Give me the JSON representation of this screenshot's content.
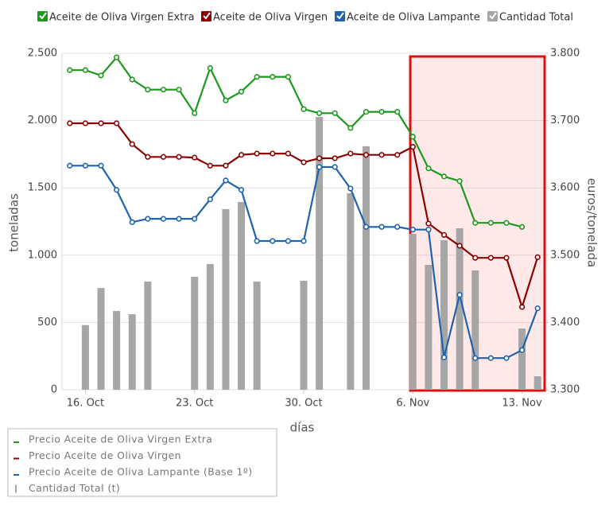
{
  "chart_data": {
    "type": "combo",
    "y_label": "toneladas",
    "y2_label": "euros/tonelada",
    "x_label": "días",
    "categories": [
      null,
      "16. Oct",
      null,
      null,
      null,
      null,
      null,
      null,
      "23. Oct",
      null,
      null,
      null,
      null,
      null,
      null,
      "30. Oct",
      null,
      null,
      null,
      null,
      null,
      null,
      "6. Nov",
      null,
      null,
      null,
      null,
      null,
      null,
      "13. Nov",
      null
    ],
    "ylim": [
      0,
      2500
    ],
    "yticks": [
      {
        "value": 0,
        "label": "0"
      },
      {
        "value": 500,
        "label": "500"
      },
      {
        "value": 1000,
        "label": "1.000"
      },
      {
        "value": 1500,
        "label": "1.500"
      },
      {
        "value": 2000,
        "label": "2.000"
      },
      {
        "value": 2500,
        "label": "2.500"
      }
    ],
    "y2lim": [
      3300,
      3800
    ],
    "y2ticks": [
      {
        "value": 3300,
        "label": "3.300"
      },
      {
        "value": 3400,
        "label": "3.400"
      },
      {
        "value": 3500,
        "label": "3.500"
      },
      {
        "value": 3600,
        "label": "3.600"
      },
      {
        "value": 3700,
        "label": "3.700"
      },
      {
        "value": 3800,
        "label": "3.800"
      }
    ],
    "grid": true,
    "series": [
      {
        "name": "Aceite de Oliva Virgen Extra",
        "description": "Precio Aceite de Oliva Virgen Extra",
        "type": "line",
        "axis": "y2",
        "color": "#1a9a1a",
        "values": [
          3775,
          3775,
          3767,
          3794,
          3761,
          3746,
          3746,
          3746,
          3711,
          3778,
          3730,
          3743,
          3765,
          3765,
          3765,
          3717,
          3711,
          3711,
          3689,
          3713,
          3713,
          3713,
          3676,
          3629,
          3617,
          3610,
          3548,
          3548,
          3548,
          3542,
          null
        ]
      },
      {
        "name": "Aceite de Oliva Virgen",
        "description": "Precio Aceite de Oliva Virgen",
        "type": "line",
        "axis": "y2",
        "color": "#8b0000",
        "values": [
          3696,
          3696,
          3696,
          3696,
          3665,
          3646,
          3646,
          3646,
          3645,
          3633,
          3633,
          3649,
          3651,
          3651,
          3651,
          3638,
          3644,
          3644,
          3651,
          3649,
          3649,
          3649,
          3661,
          3547,
          3530,
          3514,
          3496,
          3496,
          3496,
          3423,
          3497
        ]
      },
      {
        "name": "Aceite de Oliva Lampante",
        "description": "Precio Aceite de Oliva Lampante (Base 1º)",
        "type": "line",
        "axis": "y2",
        "color": "#1e63b0",
        "values": [
          3633,
          3633,
          3633,
          3597,
          3549,
          3554,
          3554,
          3554,
          3554,
          3583,
          3611,
          3597,
          3521,
          3521,
          3521,
          3521,
          3631,
          3631,
          3599,
          3542,
          3542,
          3542,
          3538,
          3538,
          3348,
          3441,
          3347,
          3347,
          3347,
          3359,
          3421
        ]
      },
      {
        "name": "Cantidad Total",
        "description": "Cantidad Total (t)",
        "type": "bar",
        "color": "#a6a6a6",
        "values": [
          null,
          480,
          756,
          585,
          561,
          804,
          null,
          null,
          839,
          934,
          1342,
          1395,
          804,
          null,
          null,
          810,
          2027,
          null,
          1460,
          1809,
          null,
          null,
          1158,
          928,
          1111,
          1200,
          887,
          null,
          null,
          455,
          100
        ]
      }
    ]
  }
}
